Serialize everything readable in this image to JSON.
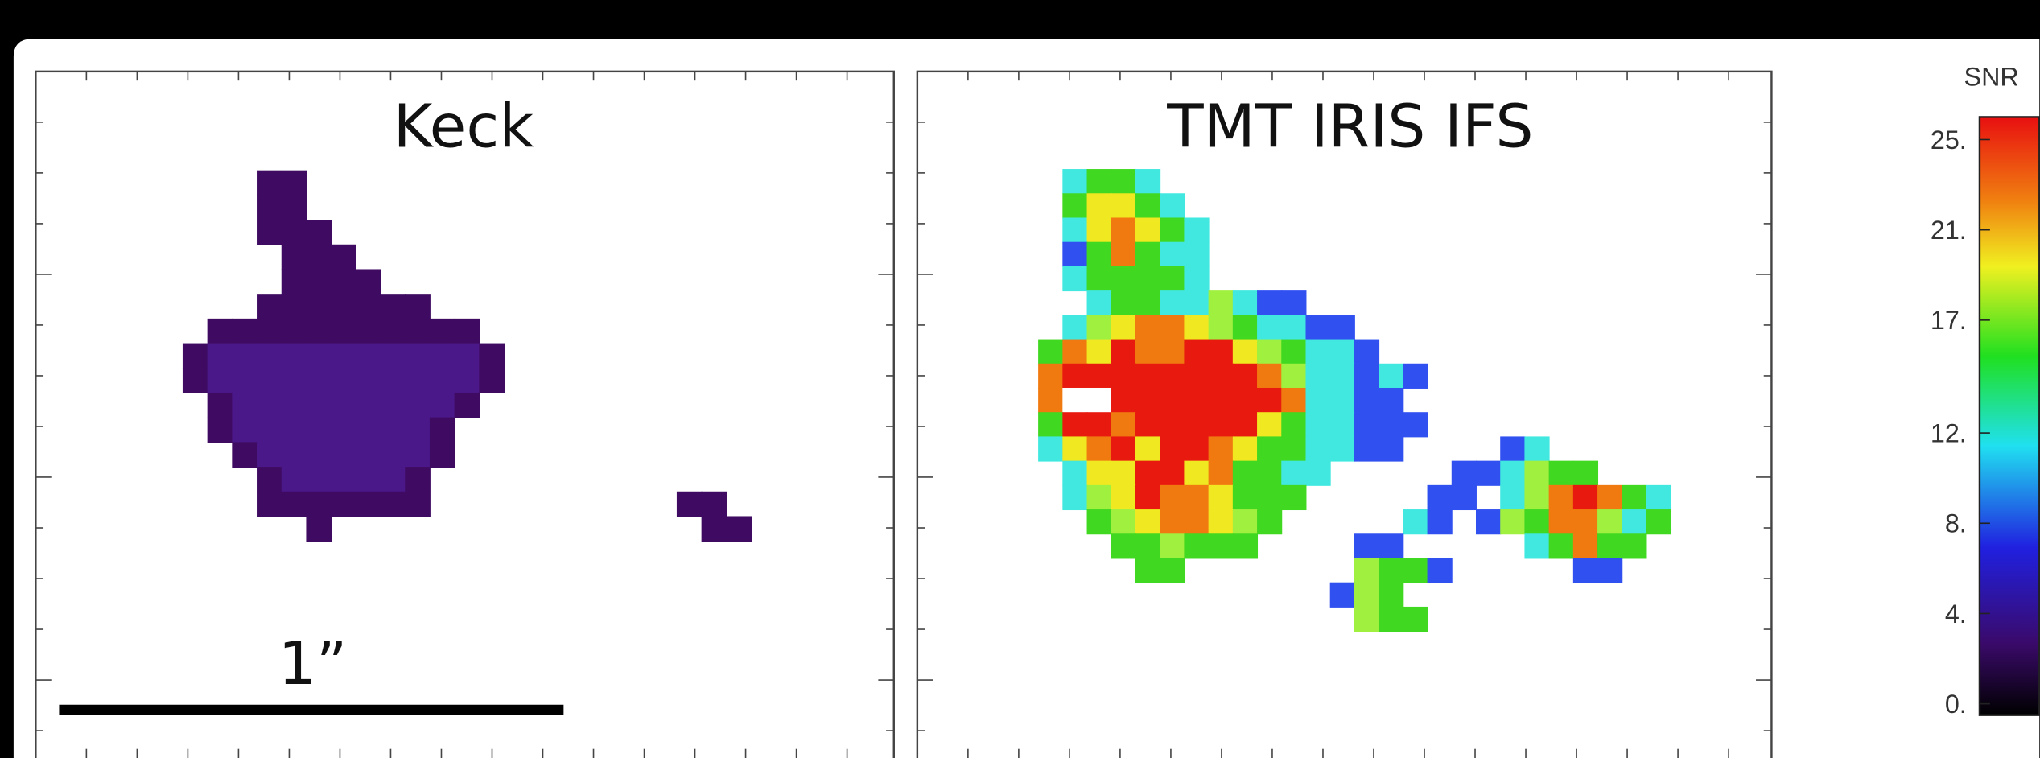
{
  "panels": [
    {
      "title": "Keck",
      "scale_bar_label": "1”"
    },
    {
      "title": "TMT IRIS IFS"
    }
  ],
  "colorbar": {
    "label": "SNR",
    "clim": [
      -0.5,
      26
    ],
    "ticks": [
      {
        "value": 25,
        "label": "25."
      },
      {
        "value": 21,
        "label": "21."
      },
      {
        "value": 17,
        "label": "17."
      },
      {
        "value": 12,
        "label": "12."
      },
      {
        "value": 8,
        "label": "8."
      },
      {
        "value": 4,
        "label": "4."
      },
      {
        "value": 0,
        "label": "0."
      }
    ]
  }
}
